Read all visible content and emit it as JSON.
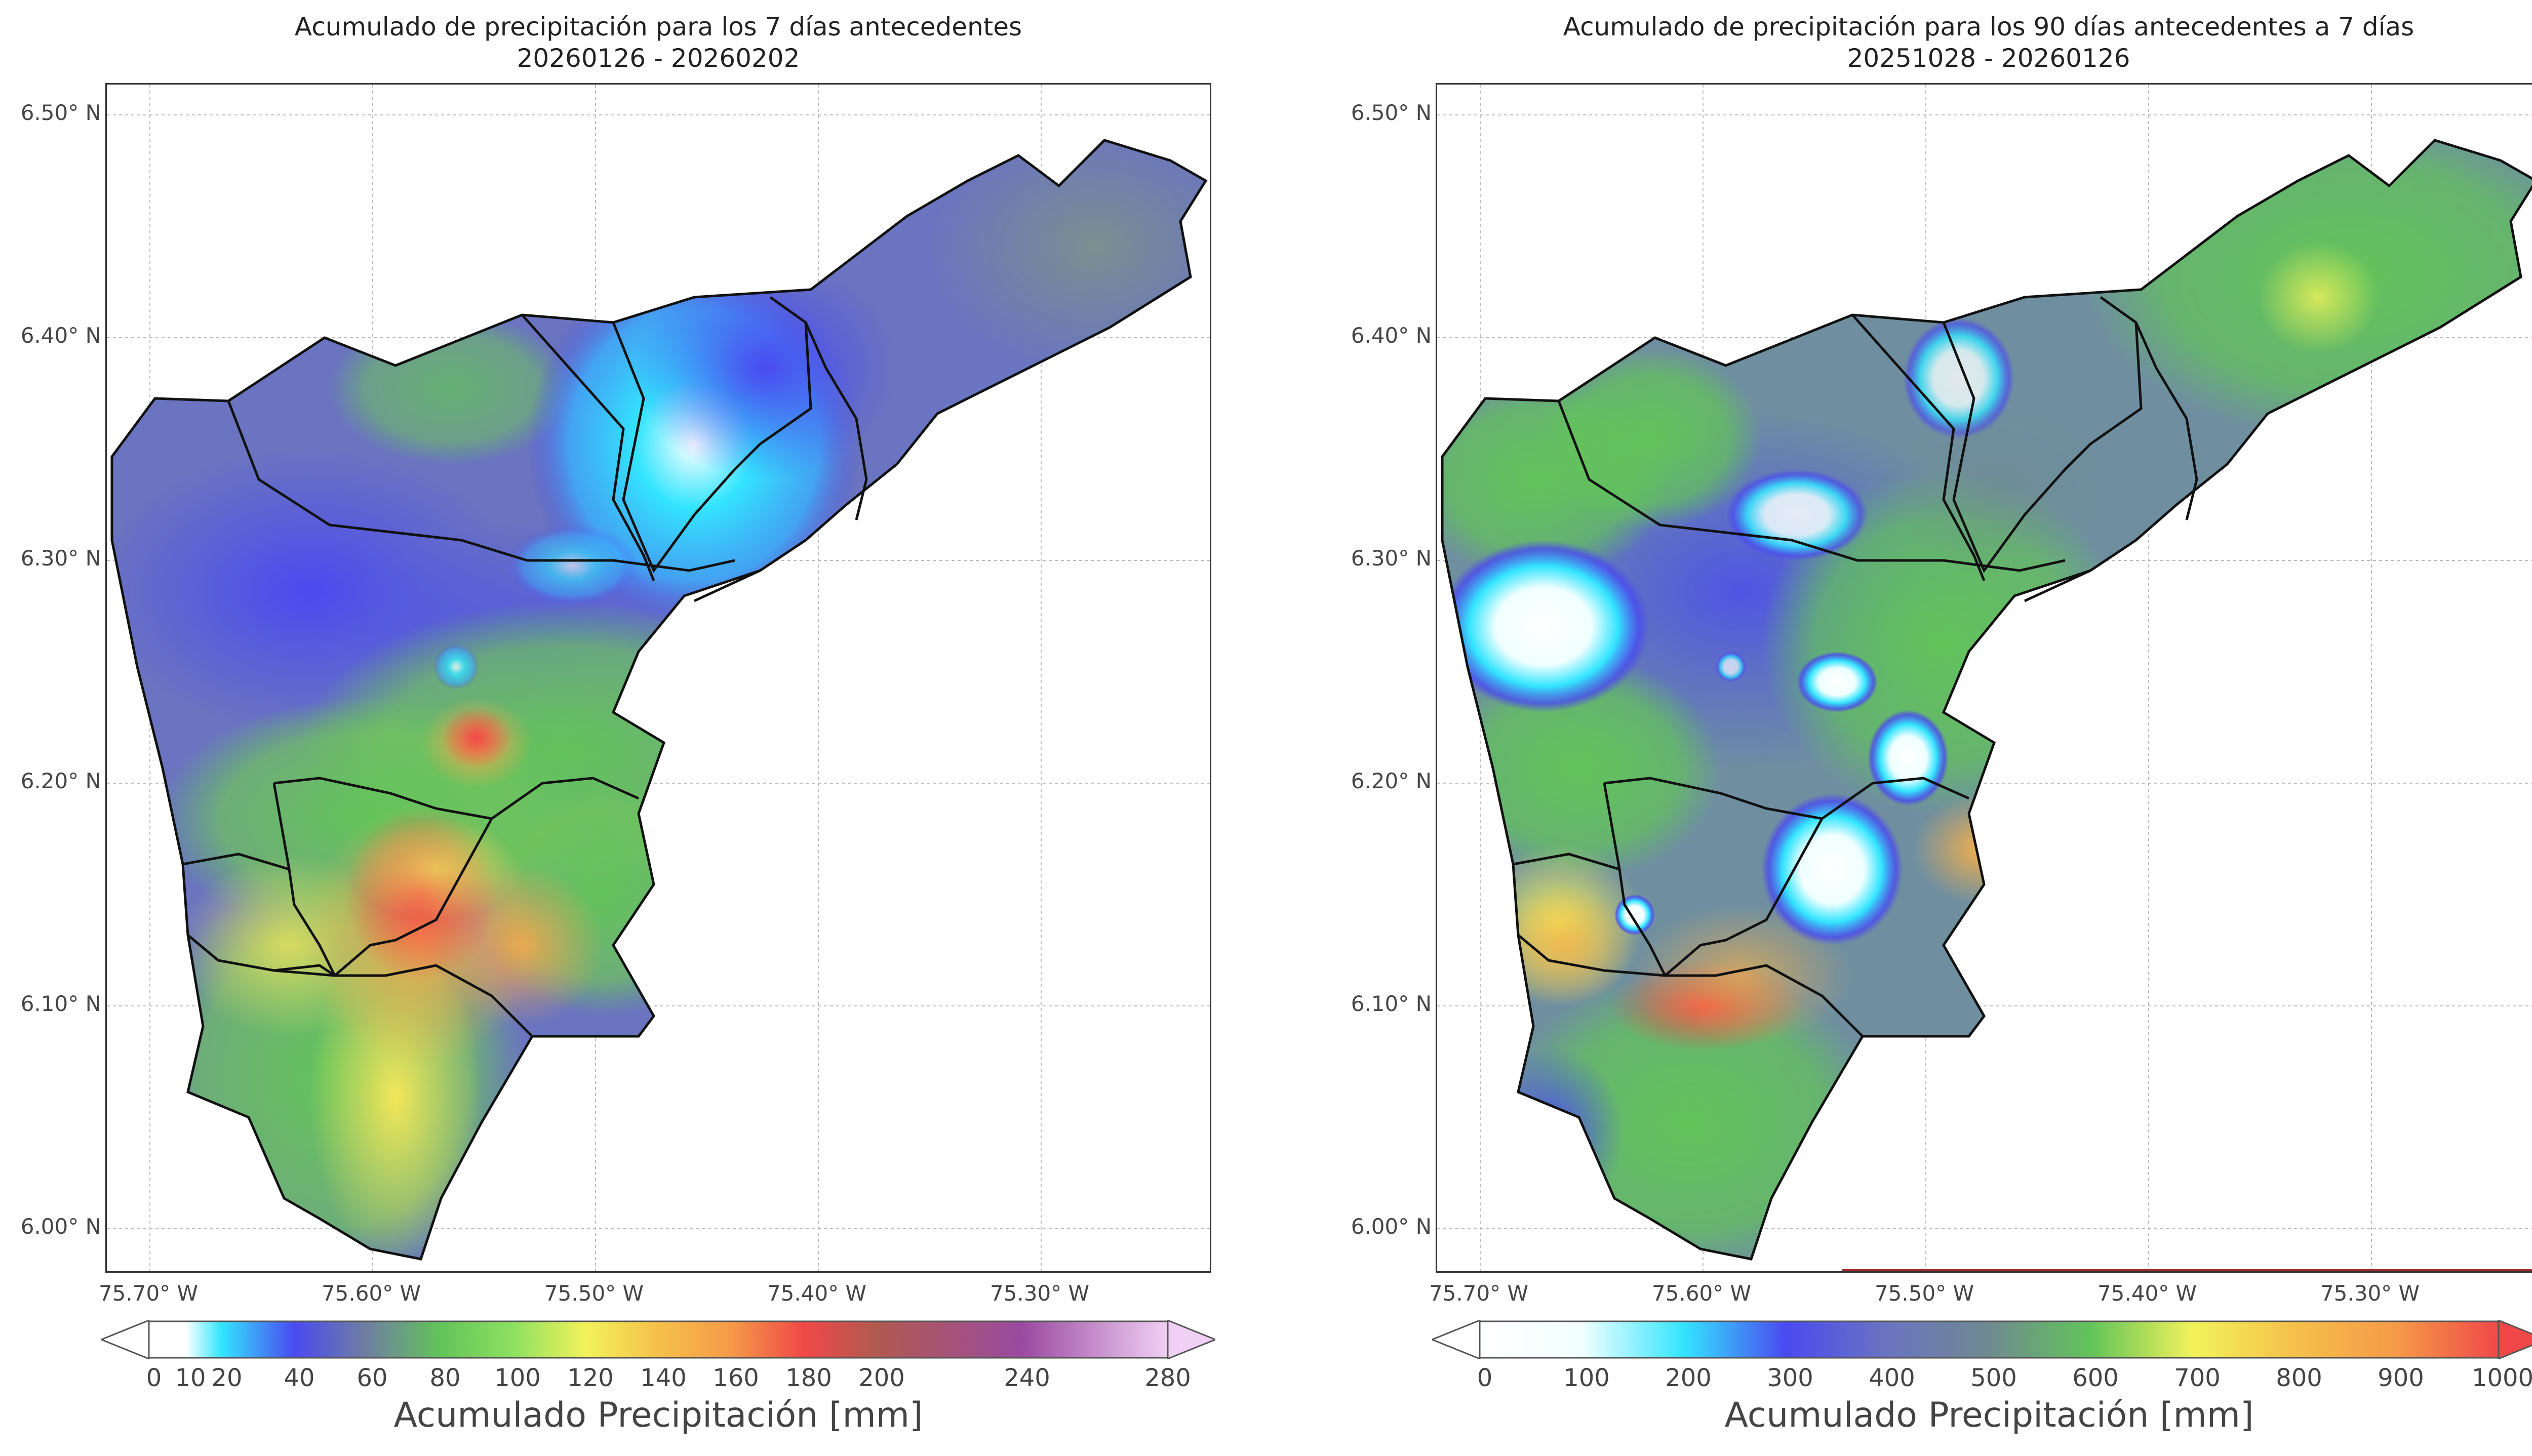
{
  "left": {
    "title_line1": "Acumulado de precipitación para los 7 días antecedentes",
    "title_line2": "20260126 - 20260202",
    "lat_labels": [
      "6.50° N",
      "6.40° N",
      "6.30° N",
      "6.20° N",
      "6.10° N",
      "6.00° N"
    ],
    "lon_labels": [
      "75.70° W",
      "75.60° W",
      "75.50° W",
      "75.40° W",
      "75.30° W"
    ],
    "colorbar": {
      "ticks": [
        "0",
        "10",
        "20",
        "40",
        "60",
        "80",
        "100",
        "120",
        "140",
        "160",
        "180",
        "200",
        "240",
        "280"
      ],
      "tick_values": [
        0,
        10,
        20,
        40,
        60,
        80,
        100,
        120,
        140,
        160,
        180,
        200,
        240,
        280
      ],
      "max_value": 280,
      "label": "Acumulado Precipitación [mm]"
    }
  },
  "right": {
    "title_line1": "Acumulado de precipitación para los 90 días antecedentes a 7 días",
    "title_line2": "20251028 - 20260126",
    "lat_labels": [
      "6.50° N",
      "6.40° N",
      "6.30° N",
      "6.20° N",
      "6.10° N",
      "6.00° N"
    ],
    "lon_labels": [
      "75.70° W",
      "75.60° W",
      "75.50° W",
      "75.40° W",
      "75.30° W"
    ],
    "colorbar": {
      "ticks": [
        "0",
        "100",
        "200",
        "300",
        "400",
        "500",
        "600",
        "700",
        "800",
        "900",
        "1000"
      ],
      "tick_values": [
        0,
        100,
        200,
        300,
        400,
        500,
        600,
        700,
        800,
        900,
        1000
      ],
      "max_value": 1000,
      "label": "Acumulado Precipitación [mm]"
    }
  },
  "colors": {
    "boundary": "#111111",
    "grid": "#bbbbbb",
    "cyan": "#33e5ff",
    "blue": "#4a4af0",
    "slate": "#6f7fa0",
    "green": "#62c45a",
    "yellow": "#f2f25a",
    "orange": "#f5a94a",
    "red": "#f04848"
  }
}
